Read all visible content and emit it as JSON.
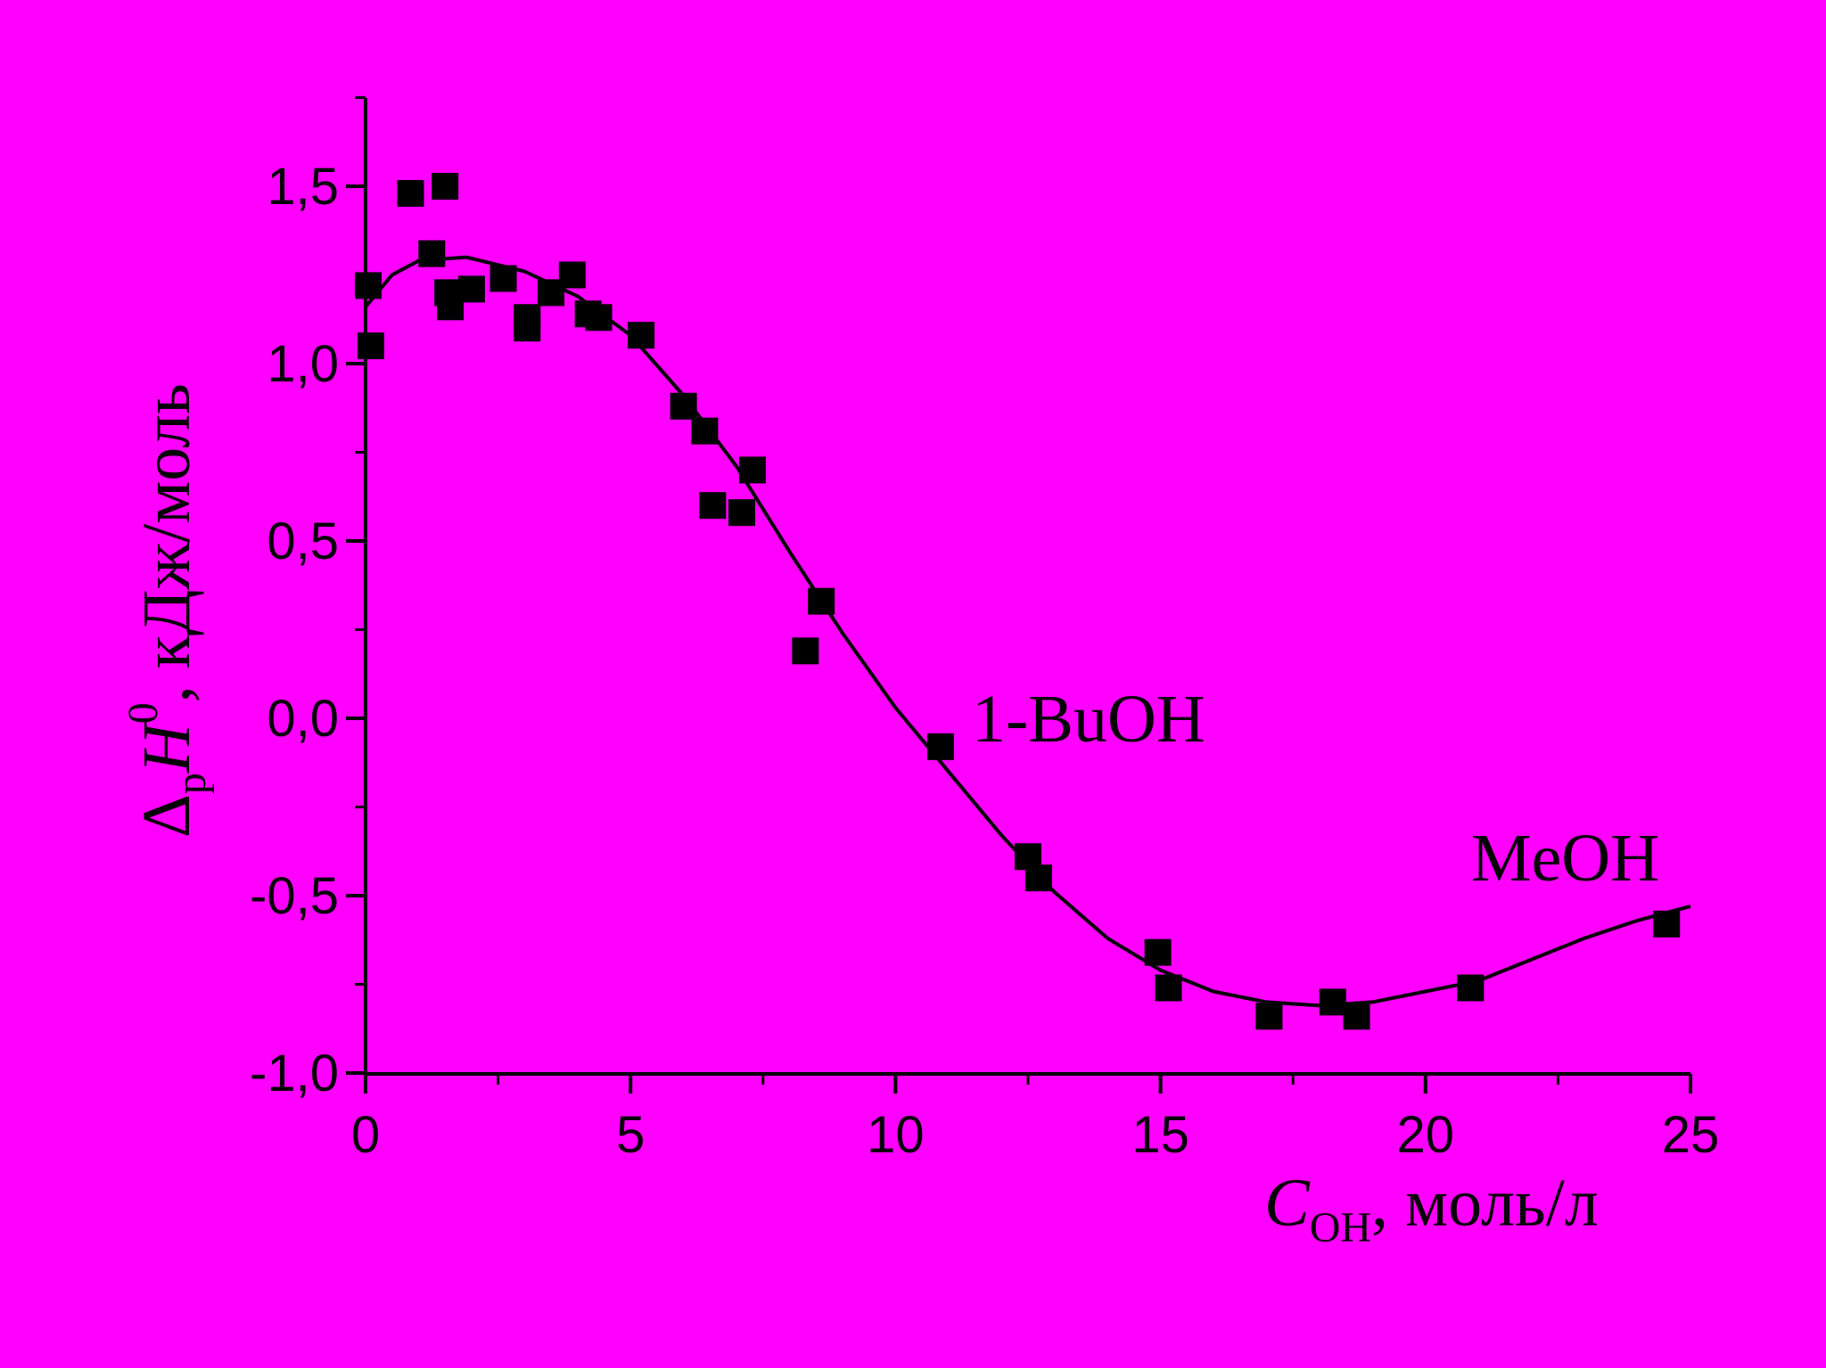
{
  "colors": {
    "background": "#FF00FF",
    "ink": "#000000"
  },
  "chart_data": {
    "type": "scatter",
    "xlim": [
      0,
      25
    ],
    "ylim": [
      -1.0,
      1.75
    ],
    "x_ticks": [
      0,
      5,
      10,
      15,
      20,
      25
    ],
    "x_tick_labels": [
      "0",
      "5",
      "10",
      "15",
      "20",
      "25"
    ],
    "y_ticks": [
      -1.0,
      -0.5,
      0.0,
      0.5,
      1.0,
      1.5
    ],
    "y_tick_labels": [
      "-1,0",
      "-0,5",
      "0,0",
      "0,5",
      "1,0",
      "1,5"
    ],
    "xlabel": {
      "symbol": "C",
      "subscript": "OH",
      "unit": ", моль/л"
    },
    "ylabel": {
      "delta": "Δ",
      "sub": "р",
      "symbol": "H",
      "sup": "0",
      "unit": ", кДж/моль"
    },
    "annotations": [
      {
        "text": "1-BuOH",
        "x": 11.6,
        "y": 0.0
      },
      {
        "text": "MeOH",
        "x": 20.8,
        "y": -0.37
      }
    ],
    "series": [
      {
        "marker": "square",
        "points": [
          [
            0.05,
            1.22
          ],
          [
            0.1,
            1.05
          ],
          [
            0.85,
            1.48
          ],
          [
            1.25,
            1.31
          ],
          [
            1.5,
            1.5
          ],
          [
            1.55,
            1.2
          ],
          [
            1.6,
            1.16
          ],
          [
            2.0,
            1.21
          ],
          [
            2.6,
            1.24
          ],
          [
            3.05,
            1.13
          ],
          [
            3.05,
            1.1
          ],
          [
            3.5,
            1.2
          ],
          [
            3.9,
            1.25
          ],
          [
            4.2,
            1.14
          ],
          [
            4.4,
            1.13
          ],
          [
            5.2,
            1.08
          ],
          [
            6.0,
            0.88
          ],
          [
            6.4,
            0.81
          ],
          [
            6.55,
            0.6
          ],
          [
            7.1,
            0.58
          ],
          [
            7.3,
            0.7
          ],
          [
            8.3,
            0.19
          ],
          [
            8.6,
            0.33
          ],
          [
            10.85,
            -0.08
          ],
          [
            12.5,
            -0.39
          ],
          [
            12.7,
            -0.45
          ],
          [
            14.95,
            -0.66
          ],
          [
            15.15,
            -0.76
          ],
          [
            17.05,
            -0.84
          ],
          [
            18.25,
            -0.8
          ],
          [
            18.7,
            -0.84
          ],
          [
            20.85,
            -0.76
          ],
          [
            24.55,
            -0.58
          ]
        ]
      },
      {
        "type": "line",
        "points": [
          [
            0,
            1.16
          ],
          [
            0.5,
            1.25
          ],
          [
            1.0,
            1.29
          ],
          [
            1.9,
            1.3
          ],
          [
            3.0,
            1.26
          ],
          [
            4.0,
            1.19
          ],
          [
            5.0,
            1.08
          ],
          [
            6.0,
            0.91
          ],
          [
            7.0,
            0.71
          ],
          [
            8.0,
            0.47
          ],
          [
            9.0,
            0.24
          ],
          [
            10.0,
            0.03
          ],
          [
            11.0,
            -0.15
          ],
          [
            12.0,
            -0.33
          ],
          [
            13.0,
            -0.49
          ],
          [
            14.0,
            -0.62
          ],
          [
            15.0,
            -0.71
          ],
          [
            16.0,
            -0.77
          ],
          [
            17.0,
            -0.8
          ],
          [
            18.0,
            -0.81
          ],
          [
            19.0,
            -0.8
          ],
          [
            20.0,
            -0.77
          ],
          [
            21.0,
            -0.74
          ],
          [
            22.0,
            -0.68
          ],
          [
            23.0,
            -0.62
          ],
          [
            24.0,
            -0.57
          ],
          [
            25.0,
            -0.53
          ]
        ]
      }
    ]
  }
}
